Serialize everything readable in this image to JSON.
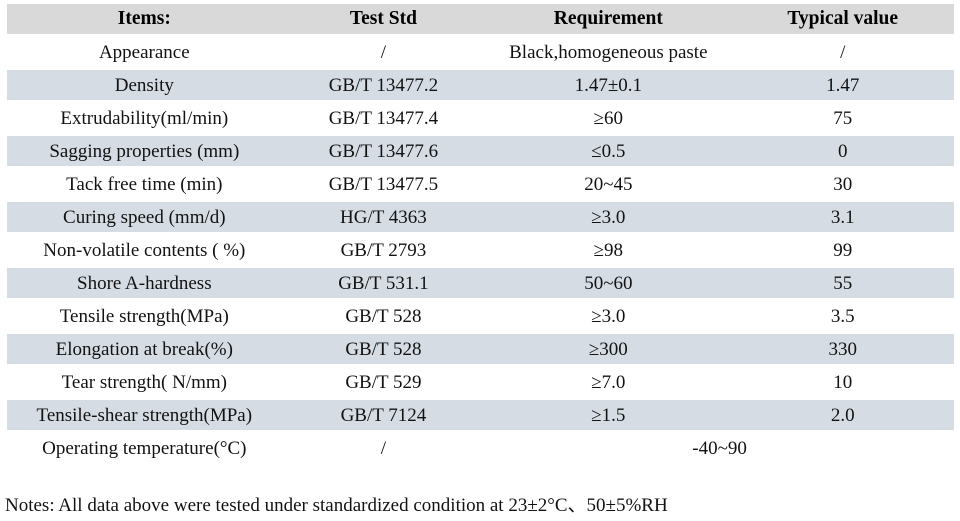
{
  "table": {
    "columns": [
      "Items:",
      "Test Std",
      "Requirement",
      "Typical value"
    ],
    "rows": [
      {
        "item": "Appearance",
        "std": "/",
        "req": "Black,homogeneous paste",
        "typ": "/"
      },
      {
        "item": "Density",
        "std": "GB/T 13477.2",
        "req": "1.47±0.1",
        "typ": "1.47"
      },
      {
        "item": "Extrudability(ml/min)",
        "std": "GB/T 13477.4",
        "req": "≥60",
        "typ": "75"
      },
      {
        "item": "Sagging properties (mm)",
        "std": "GB/T 13477.6",
        "req": "≤0.5",
        "typ": "0"
      },
      {
        "item": "Tack free time (min)",
        "std": "GB/T 13477.5",
        "req": "20~45",
        "typ": "30"
      },
      {
        "item": "Curing speed (mm/d)",
        "std": "HG/T 4363",
        "req": "≥3.0",
        "typ": "3.1"
      },
      {
        "item": "Non-volatile contents ( %)",
        "std": "GB/T 2793",
        "req": "≥98",
        "typ": "99"
      },
      {
        "item": "Shore A-hardness",
        "std": "GB/T 531.1",
        "req": "50~60",
        "typ": "55"
      },
      {
        "item": "Tensile strength(MPa)",
        "std": "GB/T 528",
        "req": "≥3.0",
        "typ": "3.5"
      },
      {
        "item": "Elongation at break(%)",
        "std": "GB/T 528",
        "req": "≥300",
        "typ": "330"
      },
      {
        "item": "Tear strength( N/mm)",
        "std": "GB/T 529",
        "req": "≥7.0",
        "typ": "10"
      },
      {
        "item": "Tensile-shear strength(MPa)",
        "std": "GB/T 7124",
        "req": "≥1.5",
        "typ": "2.0"
      },
      {
        "item": "Operating temperature(°C)",
        "std": "/",
        "req_typ": "-40~90"
      }
    ]
  },
  "note": "Notes: All data above were tested under standardized condition at 23±2°C、50±5%RH",
  "colors": {
    "header_bg": "#d9d9d9",
    "alt_row_bg": "#d6dce4",
    "row_bg": "#ffffff",
    "text": "#121212"
  }
}
